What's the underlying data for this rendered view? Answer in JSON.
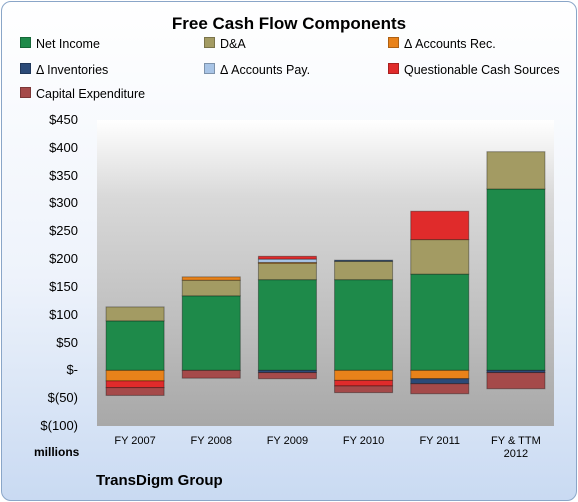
{
  "chart_data": {
    "type": "bar",
    "stacked": true,
    "title": "Free Cash Flow Components",
    "ylabel": "millions",
    "ylim": [
      -100,
      450
    ],
    "yticks": [
      "$450",
      "$400",
      "$350",
      "$300",
      "$250",
      "$200",
      "$150",
      "$100",
      "$50",
      "$-",
      "$(50)",
      "$(100)"
    ],
    "categories": [
      "FY 2007",
      "FY 2008",
      "FY 2009",
      "FY 2010",
      "FY 2011",
      "FY & TTM 2012"
    ],
    "series": [
      {
        "name": "Net Income",
        "color": "#1e8a4a",
        "values": [
          89,
          134,
          163,
          163,
          173,
          326
        ]
      },
      {
        "name": "D&A",
        "color": "#a39b63",
        "values": [
          25,
          28,
          30,
          33,
          62,
          67
        ]
      },
      {
        "name": "Δ Accounts Rec.",
        "color": "#e8821a",
        "values": [
          -19,
          6,
          1,
          -18,
          -15,
          0
        ]
      },
      {
        "name": "Δ Inventories",
        "color": "#2b4a78",
        "values": [
          0,
          0,
          -4,
          2,
          -9,
          -4
        ]
      },
      {
        "name": "Δ Accounts Pay.",
        "color": "#a8c4e6",
        "values": [
          0,
          0,
          6,
          0,
          0,
          0
        ]
      },
      {
        "name": "Questionable Cash Sources",
        "color": "#e02b2b",
        "values": [
          -12,
          0,
          5,
          -10,
          51,
          0
        ]
      },
      {
        "name": "Capital Expenditure",
        "color": "#a54a4a",
        "values": [
          -14,
          -14,
          -11,
          -12,
          -18,
          -29
        ]
      }
    ],
    "grid": false,
    "legend_position": "top"
  },
  "footer": {
    "units_label": "millions",
    "company": "TransDigm Group"
  }
}
